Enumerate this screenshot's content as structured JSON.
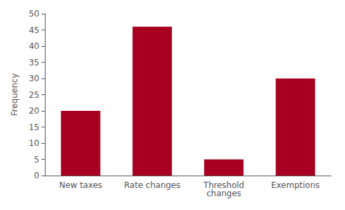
{
  "chart_data": {
    "type": "bar",
    "categories": [
      "New taxes",
      "Rate changes",
      "Threshold\nchanges",
      "Exemptions"
    ],
    "values": [
      20,
      46,
      5,
      30
    ],
    "color": "#A80020",
    "ylabel": "Frequency",
    "ylim": [
      0,
      50
    ],
    "yticks": [
      0,
      5,
      10,
      15,
      20,
      25,
      30,
      35,
      40,
      45,
      50
    ],
    "grid": false
  }
}
